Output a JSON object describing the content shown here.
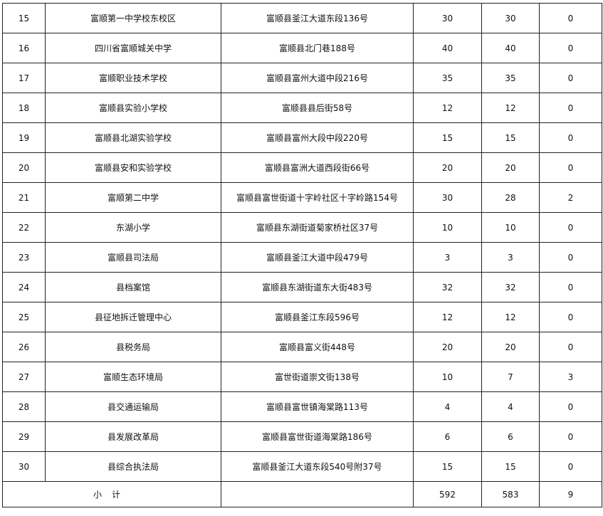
{
  "rows": [
    {
      "no": "15",
      "name": "富顺第一中学校东校区",
      "address": "富顺县釜江大道东段136号",
      "c1": "30",
      "c2": "30",
      "c3": "0"
    },
    {
      "no": "16",
      "name": "四川省富顺城关中学",
      "address": "富顺县北门巷188号",
      "c1": "40",
      "c2": "40",
      "c3": "0"
    },
    {
      "no": "17",
      "name": "富顺职业技术学校",
      "address": "富顺县富州大道中段216号",
      "c1": "35",
      "c2": "35",
      "c3": "0"
    },
    {
      "no": "18",
      "name": "富顺县实验小学校",
      "address": "富顺县县后街58号",
      "c1": "12",
      "c2": "12",
      "c3": "0"
    },
    {
      "no": "19",
      "name": "富顺县北湖实验学校",
      "address": "富顺县富州大段中段220号",
      "c1": "15",
      "c2": "15",
      "c3": "0"
    },
    {
      "no": "20",
      "name": "富顺县安和实验学校",
      "address": "富顺县富洲大道西段街66号",
      "c1": "20",
      "c2": "20",
      "c3": "0"
    },
    {
      "no": "21",
      "name": "富顺第二中学",
      "address": "富顺县富世街道十字岭社区十字岭路154号",
      "c1": "30",
      "c2": "28",
      "c3": "2"
    },
    {
      "no": "22",
      "name": "东湖小学",
      "address": "富顺县东湖街道菊家桥社区37号",
      "c1": "10",
      "c2": "10",
      "c3": "0"
    },
    {
      "no": "23",
      "name": "富顺县司法局",
      "address": "富顺县釜江大道中段479号",
      "c1": "3",
      "c2": "3",
      "c3": "0"
    },
    {
      "no": "24",
      "name": "县档案馆",
      "address": "富顺县东湖街道东大街483号",
      "c1": "32",
      "c2": "32",
      "c3": "0"
    },
    {
      "no": "25",
      "name": "县征地拆迁管理中心",
      "address": "富顺县釜江东段596号",
      "c1": "12",
      "c2": "12",
      "c3": "0"
    },
    {
      "no": "26",
      "name": "县税务局",
      "address": "富顺县富义街448号",
      "c1": "20",
      "c2": "20",
      "c3": "0"
    },
    {
      "no": "27",
      "name": "富顺生态环境局",
      "address": "富世街道崇文街138号",
      "c1": "10",
      "c2": "7",
      "c3": "3"
    },
    {
      "no": "28",
      "name": "县交通运输局",
      "address": "富顺县富世镇海棠路113号",
      "c1": "4",
      "c2": "4",
      "c3": "0"
    },
    {
      "no": "29",
      "name": "县发展改革局",
      "address": "富顺县富世街道海棠路186号",
      "c1": "6",
      "c2": "6",
      "c3": "0"
    },
    {
      "no": "30",
      "name": "县综合执法局",
      "address": "富顺县釜江大道东段540号附37号",
      "c1": "15",
      "c2": "15",
      "c3": "0"
    }
  ],
  "subtotal": {
    "label": "小计",
    "address": "",
    "c1": "592",
    "c2": "583",
    "c3": "9"
  }
}
